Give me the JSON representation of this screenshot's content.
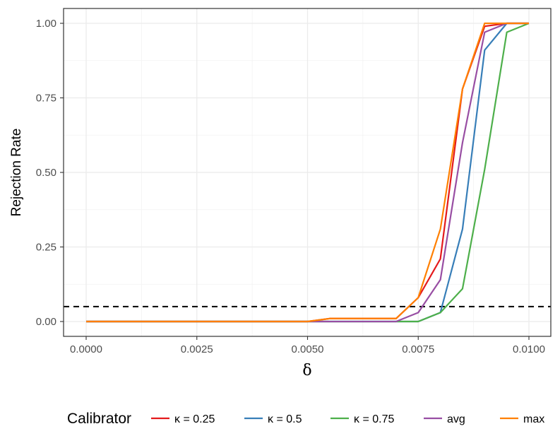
{
  "chart_data": {
    "type": "line",
    "xlabel": "δ",
    "ylabel": "Rejection Rate",
    "xlim": [
      0,
      0.01
    ],
    "ylim": [
      0,
      1
    ],
    "x_ticks": [
      {
        "value": 0.0,
        "label": "0.0000"
      },
      {
        "value": 0.0025,
        "label": "0.0025"
      },
      {
        "value": 0.005,
        "label": "0.0050"
      },
      {
        "value": 0.0075,
        "label": "0.0075"
      },
      {
        "value": 0.01,
        "label": "0.0100"
      }
    ],
    "y_ticks": [
      {
        "value": 0.0,
        "label": "0.00"
      },
      {
        "value": 0.25,
        "label": "0.25"
      },
      {
        "value": 0.5,
        "label": "0.50"
      },
      {
        "value": 0.75,
        "label": "0.75"
      },
      {
        "value": 1.0,
        "label": "1.00"
      }
    ],
    "grid": true,
    "reference_line": {
      "y": 0.05,
      "style": "dashed",
      "color": "#000000"
    },
    "legend": {
      "title": "Calibrator",
      "position": "bottom"
    },
    "x": [
      0.0,
      0.0005,
      0.001,
      0.0015,
      0.002,
      0.0025,
      0.003,
      0.0035,
      0.004,
      0.0045,
      0.005,
      0.0055,
      0.006,
      0.0065,
      0.007,
      0.0075,
      0.008,
      0.0085,
      0.009,
      0.0095,
      0.01
    ],
    "series": [
      {
        "name": "κ = 0.25",
        "color": "#E41A1C",
        "values": [
          0,
          0,
          0,
          0,
          0,
          0,
          0,
          0,
          0,
          0,
          0,
          0.01,
          0.01,
          0.01,
          0.01,
          0.08,
          0.21,
          0.78,
          0.99,
          1.0,
          1.0
        ]
      },
      {
        "name": "κ = 0.5",
        "color": "#377EB8",
        "values": [
          0,
          0,
          0,
          0,
          0,
          0,
          0,
          0,
          0,
          0,
          0,
          0,
          0,
          0,
          0,
          0,
          0.03,
          0.31,
          0.91,
          1.0,
          1.0
        ]
      },
      {
        "name": "κ = 0.75",
        "color": "#4DAF4A",
        "values": [
          0,
          0,
          0,
          0,
          0,
          0,
          0,
          0,
          0,
          0,
          0,
          0,
          0,
          0,
          0,
          0,
          0.03,
          0.11,
          0.51,
          0.97,
          1.0
        ]
      },
      {
        "name": "avg",
        "color": "#984EA3",
        "values": [
          0,
          0,
          0,
          0,
          0,
          0,
          0,
          0,
          0,
          0,
          0,
          0,
          0,
          0,
          0,
          0.03,
          0.14,
          0.6,
          0.97,
          1.0,
          1.0
        ]
      },
      {
        "name": "max",
        "color": "#FF7F00",
        "values": [
          0,
          0,
          0,
          0,
          0,
          0,
          0,
          0,
          0,
          0,
          0,
          0.01,
          0.01,
          0.01,
          0.01,
          0.08,
          0.31,
          0.78,
          1.0,
          1.0,
          1.0
        ]
      }
    ]
  }
}
